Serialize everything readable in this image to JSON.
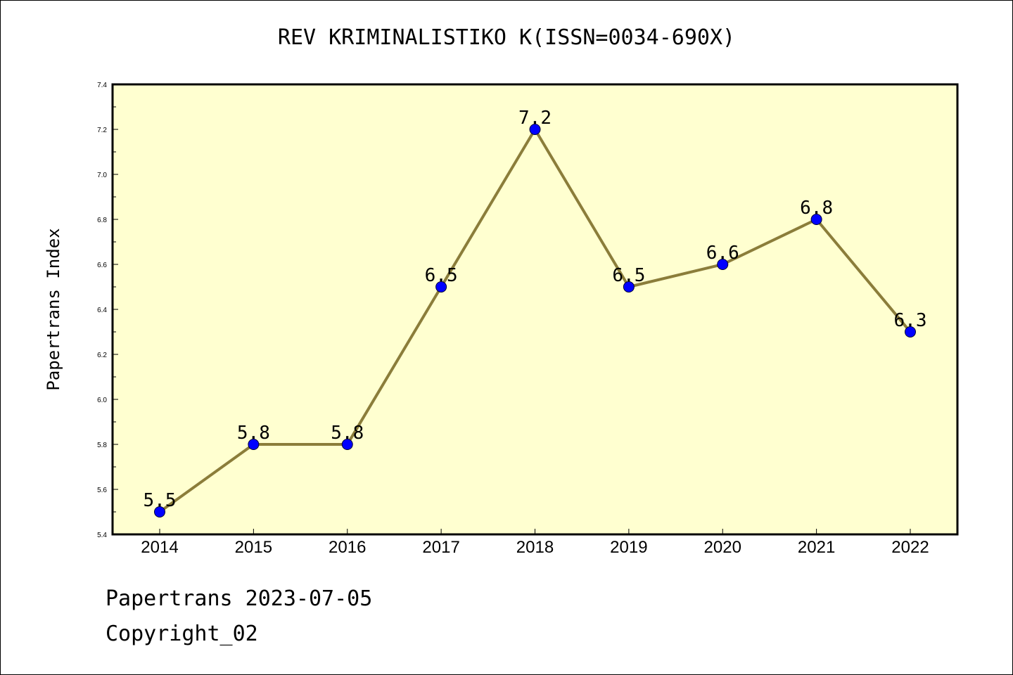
{
  "title": "REV KRIMINALISTIKO K(ISSN=0034-690X)",
  "footer": {
    "date_line": "Papertrans 2023-07-05",
    "copyright_line": "Copyright_02"
  },
  "colors": {
    "plot_background": "#ffffd0",
    "line": "#8b7d3a",
    "marker": "#0000ff",
    "axis": "#000000"
  },
  "chart_data": {
    "type": "line",
    "title": "REV KRIMINALISTIKO K(ISSN=0034-690X)",
    "xlabel": "",
    "ylabel": "Papertrans Index",
    "categories": [
      "2014",
      "2015",
      "2016",
      "2017",
      "2018",
      "2019",
      "2020",
      "2021",
      "2022"
    ],
    "series": [
      {
        "values": [
          5.5,
          5.8,
          5.8,
          6.5,
          7.2,
          6.5,
          6.6,
          6.8,
          6.3
        ],
        "labels": [
          "5.5",
          "5.8",
          "5.8",
          "6.5",
          "7.2",
          "6.5",
          "6.6",
          "6.8",
          "6.3"
        ]
      }
    ],
    "ylim": [
      5.4,
      7.4
    ],
    "yticks": [
      "5.4",
      "5.6",
      "5.8",
      "6.0",
      "6.2",
      "6.4",
      "6.6",
      "6.8",
      "7.0",
      "7.2",
      "7.4"
    ],
    "grid": false,
    "legend": "none"
  }
}
